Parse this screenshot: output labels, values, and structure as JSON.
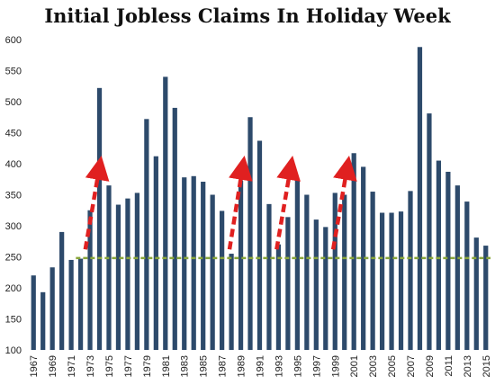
{
  "chart_data": {
    "type": "bar",
    "title": "Initial Jobless Claims In Holiday Week",
    "xlabel": "",
    "ylabel": "",
    "ylim": [
      100,
      600
    ],
    "yticks": [
      100,
      150,
      200,
      250,
      300,
      350,
      400,
      450,
      500,
      550,
      600
    ],
    "x_tick_labels": [
      "1967",
      "1969",
      "1971",
      "1973",
      "1975",
      "1977",
      "1979",
      "1981",
      "1983",
      "1985",
      "1987",
      "1989",
      "1991",
      "1993",
      "1995",
      "1997",
      "1999",
      "2001",
      "2003",
      "2005",
      "2007",
      "2009",
      "2011",
      "2013",
      "2015"
    ],
    "categories": [
      "1967",
      "1968",
      "1969",
      "1970",
      "1971",
      "1972",
      "1973",
      "1974",
      "1975",
      "1976",
      "1977",
      "1978",
      "1979",
      "1980",
      "1981",
      "1982",
      "1983",
      "1984",
      "1985",
      "1986",
      "1987",
      "1988",
      "1989",
      "1990",
      "1991",
      "1992",
      "1993",
      "1994",
      "1995",
      "1996",
      "1997",
      "1998",
      "1999",
      "2000",
      "2001",
      "2002",
      "2003",
      "2004",
      "2005",
      "2006",
      "2007",
      "2008",
      "2009",
      "2010",
      "2011",
      "2012",
      "2013",
      "2014",
      "2015"
    ],
    "values": [
      220,
      193,
      233,
      290,
      245,
      247,
      325,
      522,
      365,
      334,
      344,
      353,
      472,
      412,
      540,
      490,
      378,
      380,
      371,
      350,
      324,
      255,
      373,
      475,
      437,
      335,
      270,
      314,
      375,
      350,
      310,
      298,
      353,
      350,
      417,
      395,
      355,
      321,
      321,
      323,
      356,
      588,
      481,
      405,
      387,
      365,
      339,
      281,
      268
    ],
    "bar_color": "#2d4a6b",
    "reference_line": {
      "value": 248,
      "color": "#8aa63a",
      "style": "dashed"
    },
    "annotations": [
      {
        "type": "arrow",
        "from": [
          1972.5,
          262
        ],
        "to": [
          1974.0,
          395
        ],
        "color": "#e02020",
        "style": "dashed"
      },
      {
        "type": "arrow",
        "from": [
          1987.8,
          262
        ],
        "to": [
          1989.2,
          395
        ],
        "color": "#e02020",
        "style": "dashed"
      },
      {
        "type": "arrow",
        "from": [
          1992.8,
          262
        ],
        "to": [
          1994.3,
          395
        ],
        "color": "#e02020",
        "style": "dashed"
      },
      {
        "type": "arrow",
        "from": [
          1998.8,
          262
        ],
        "to": [
          2000.3,
          395
        ],
        "color": "#e02020",
        "style": "dashed"
      }
    ],
    "grid": false,
    "legend": "none"
  }
}
